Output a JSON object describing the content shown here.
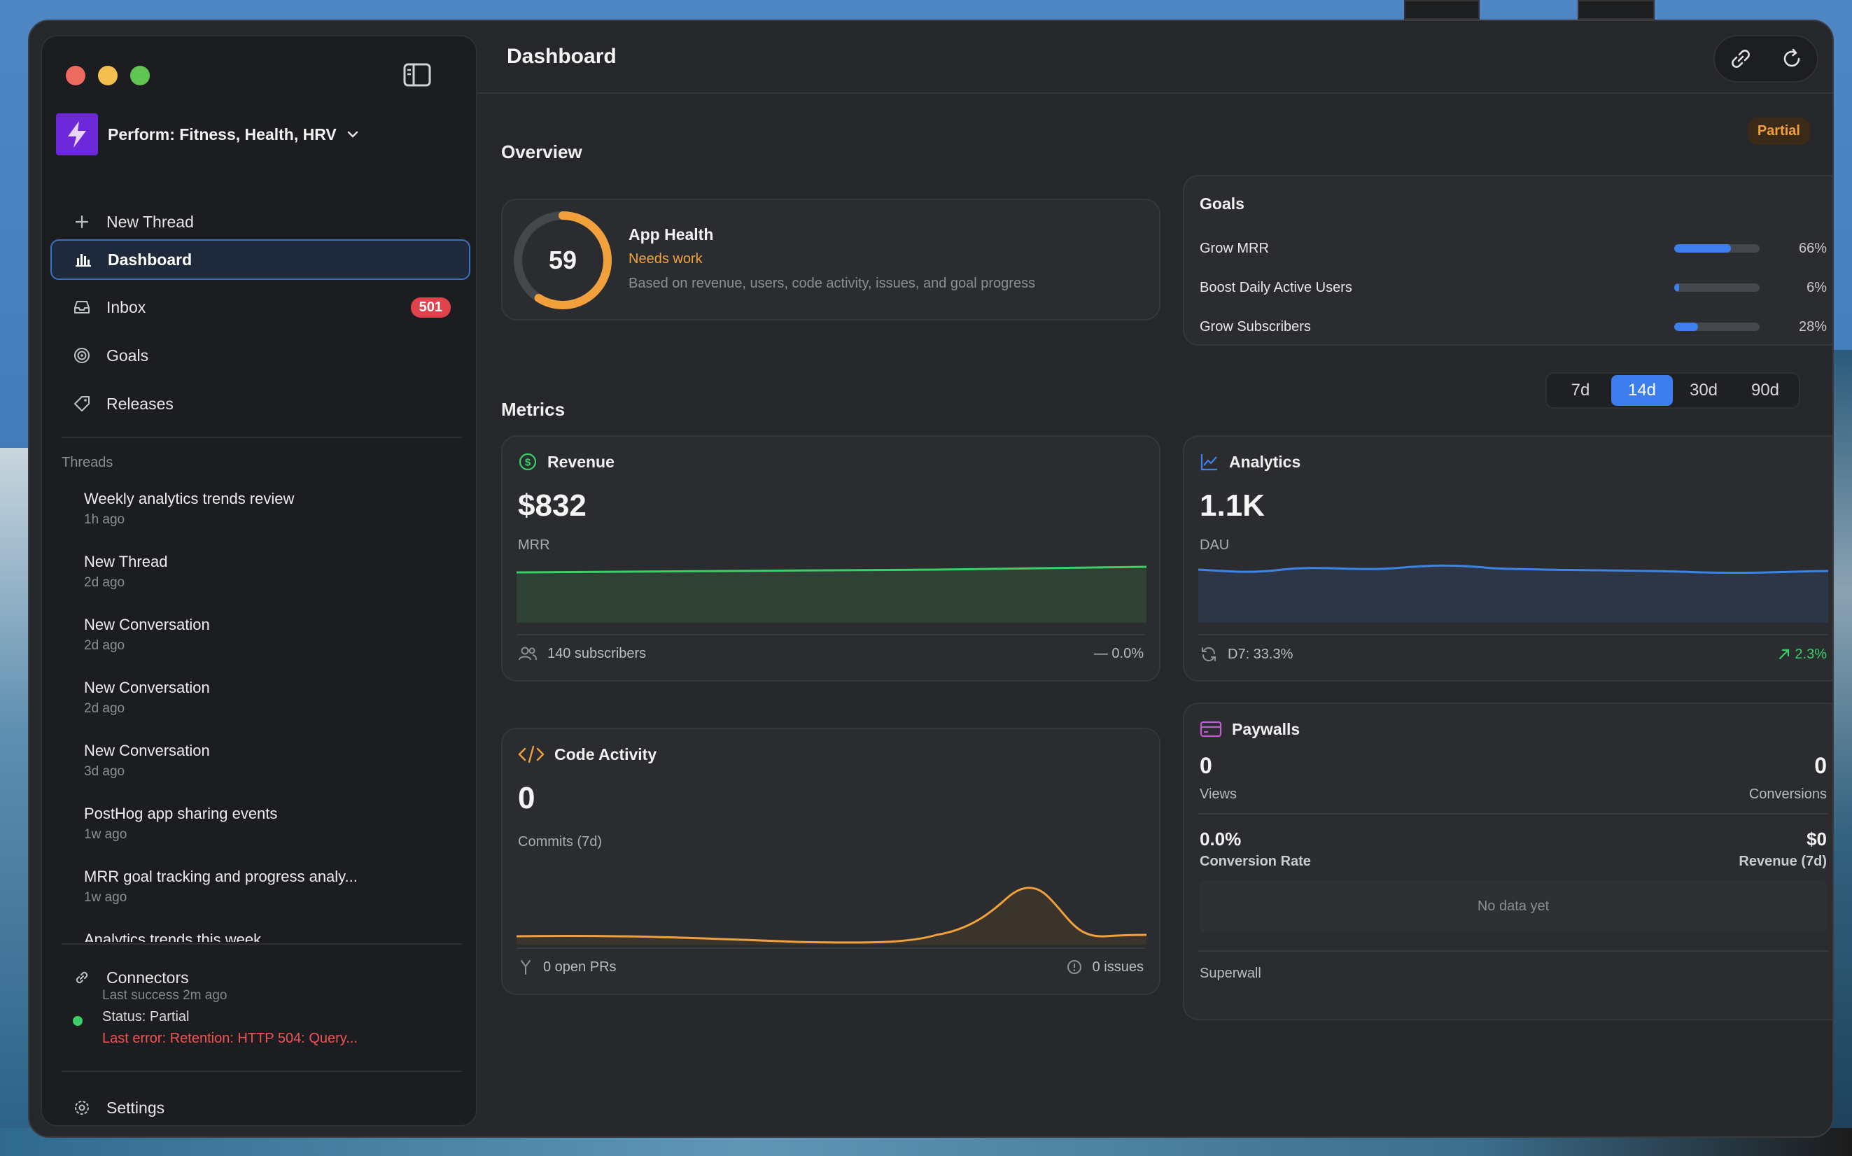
{
  "window": {
    "sidebar": {
      "app_name": "Perform: Fitness, Health, HRV",
      "new_thread_label": "New Thread",
      "nav": [
        {
          "label": "Dashboard",
          "icon": "bar-chart-icon",
          "active": true
        },
        {
          "label": "Inbox",
          "icon": "inbox-icon",
          "badge": "501"
        },
        {
          "label": "Goals",
          "icon": "target-icon"
        },
        {
          "label": "Releases",
          "icon": "tag-icon"
        }
      ],
      "threads_header": "Threads",
      "threads": [
        {
          "title": "Weekly analytics trends review",
          "time": "1h ago"
        },
        {
          "title": "New Thread",
          "time": "2d ago"
        },
        {
          "title": "New Conversation",
          "time": "2d ago"
        },
        {
          "title": "New Conversation",
          "time": "2d ago"
        },
        {
          "title": "New Conversation",
          "time": "3d ago"
        },
        {
          "title": "PostHog app sharing events",
          "time": "1w ago"
        },
        {
          "title": "MRR goal tracking and progress analy...",
          "time": "1w ago"
        },
        {
          "title": "Analytics trends this week",
          "time": ""
        }
      ],
      "connectors_label": "Connectors",
      "connector_status": {
        "last_success": "Last success 2m ago",
        "status": "Status: Partial",
        "last_error": "Last error: Retention: HTTP 504: Query..."
      },
      "settings_label": "Settings"
    },
    "header": {
      "title": "Dashboard"
    },
    "overview": {
      "title": "Overview",
      "badge": "Partial",
      "app_health": {
        "score": "59",
        "score_fraction": 0.59,
        "title": "App Health",
        "status": "Needs work",
        "description": "Based on revenue, users, code activity, issues, and goal progress"
      },
      "goals": {
        "title": "Goals",
        "items": [
          {
            "name": "Grow MRR",
            "percent_label": "66%",
            "value": 66
          },
          {
            "name": "Boost Daily Active Users",
            "percent_label": "6%",
            "value": 6
          },
          {
            "name": "Grow Subscribers",
            "percent_label": "28%",
            "value": 28
          }
        ]
      }
    },
    "metrics": {
      "title": "Metrics",
      "ranges": [
        "7d",
        "14d",
        "30d",
        "90d"
      ],
      "selected_range": "14d",
      "revenue": {
        "title": "Revenue",
        "value": "$832",
        "label": "MRR",
        "subscribers": "140 subscribers",
        "change": "— 0.0%"
      },
      "analytics": {
        "title": "Analytics",
        "value": "1.1K",
        "label": "DAU",
        "retention": "D7: 33.3%",
        "change": "2.3%"
      },
      "code_activity": {
        "title": "Code Activity",
        "value": "0",
        "label": "Commits (7d)",
        "open_prs": "0 open PRs",
        "issues": "0 issues"
      },
      "paywalls": {
        "title": "Paywalls",
        "views_value": "0",
        "views_label": "Views",
        "conversions_value": "0",
        "conversions_label": "Conversions",
        "rate_value": "0.0%",
        "rate_label": "Conversion Rate",
        "revenue_value": "$0",
        "revenue_label": "Revenue (7d)",
        "empty": "No data yet",
        "source": "Superwall"
      }
    },
    "colors": {
      "accent": "#3c7eee",
      "health": "#f1a03b",
      "revenue_line": "#3ccf68",
      "analytics_line": "#3d84e6",
      "code_line": "#f0a03c",
      "error": "#ef5353"
    }
  }
}
